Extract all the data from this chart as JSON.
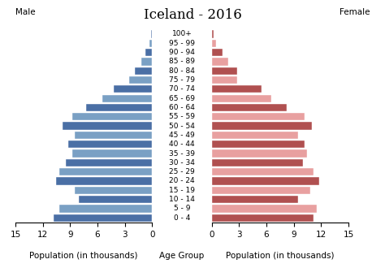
{
  "title": "Iceland - 2016",
  "male_label": "Male",
  "female_label": "Female",
  "xlabel_left": "Population (in thousands)",
  "xlabel_center": "Age Group",
  "xlabel_right": "Population (in thousands)",
  "age_groups": [
    "0 - 4",
    "5 - 9",
    "10 - 14",
    "15 - 19",
    "20 - 24",
    "25 - 29",
    "30 - 34",
    "35 - 39",
    "40 - 44",
    "45 - 49",
    "50 - 54",
    "55 - 59",
    "60 - 64",
    "65 - 69",
    "70 - 74",
    "75 - 79",
    "80 - 84",
    "85 - 89",
    "90 - 94",
    "95 - 99",
    "100+"
  ],
  "male_values": [
    10.8,
    10.2,
    8.0,
    8.5,
    10.5,
    10.2,
    9.5,
    8.8,
    9.2,
    8.5,
    9.8,
    8.8,
    7.2,
    5.5,
    4.2,
    2.5,
    1.9,
    1.2,
    0.7,
    0.3,
    0.1
  ],
  "female_values": [
    11.2,
    11.5,
    9.5,
    10.8,
    11.8,
    11.2,
    10.0,
    10.5,
    10.2,
    9.5,
    11.0,
    10.2,
    8.2,
    6.5,
    5.5,
    2.8,
    2.8,
    1.8,
    1.2,
    0.5,
    0.2
  ],
  "male_colors": [
    "#4a6fa5",
    "#7aa0c4",
    "#4a6fa5",
    "#7aa0c4",
    "#4a6fa5",
    "#7aa0c4",
    "#4a6fa5",
    "#7aa0c4",
    "#4a6fa5",
    "#7aa0c4",
    "#4a6fa5",
    "#7aa0c4",
    "#4a6fa5",
    "#7aa0c4",
    "#4a6fa5",
    "#7aa0c4",
    "#4a6fa5",
    "#7aa0c4",
    "#4a6fa5",
    "#7aa0c4",
    "#4a6fa5"
  ],
  "female_colors": [
    "#b05050",
    "#e8a0a0",
    "#b05050",
    "#e8a0a0",
    "#b05050",
    "#e8a0a0",
    "#b05050",
    "#e8a0a0",
    "#b05050",
    "#e8a0a0",
    "#b05050",
    "#e8a0a0",
    "#b05050",
    "#e8a0a0",
    "#b05050",
    "#e8a0a0",
    "#b05050",
    "#e8a0a0",
    "#b05050",
    "#e8a0a0",
    "#b05050"
  ],
  "xlim": 15,
  "xticks": [
    0,
    3,
    6,
    9,
    12,
    15
  ],
  "background_color": "#ffffff",
  "title_fontsize": 12,
  "label_fontsize": 7.5,
  "tick_fontsize": 7.5,
  "age_label_fontsize": 6.5
}
